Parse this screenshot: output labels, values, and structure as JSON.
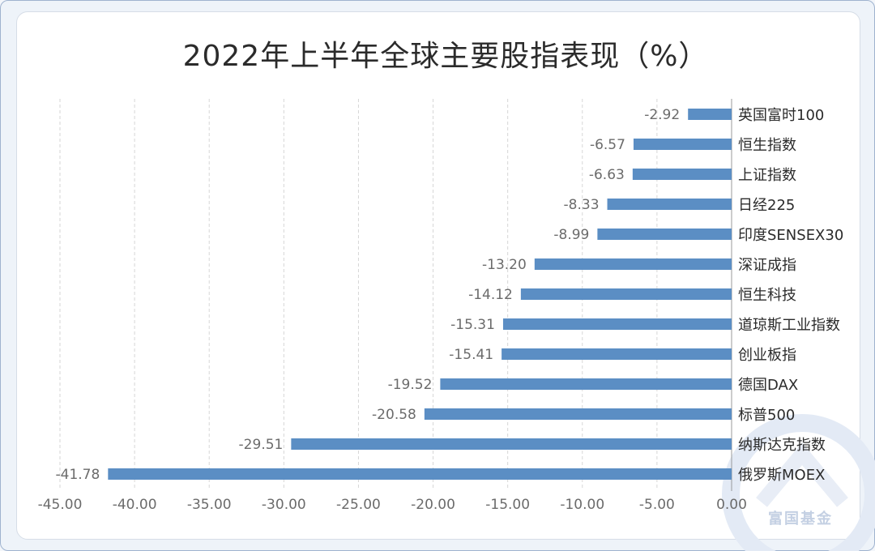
{
  "watermark": {
    "brand_text": "富国基金"
  },
  "chart_data": {
    "type": "bar",
    "orientation": "horizontal",
    "title": "2022年上半年全球主要股指表现（%）",
    "categories": [
      "英国富时100",
      "恒生指数",
      "上证指数",
      "日经225",
      "印度SENSEX30",
      "深证成指",
      "恒生科技",
      "道琼斯工业指数",
      "创业板指",
      "德国DAX",
      "标普500",
      "纳斯达克指数",
      "俄罗斯MOEX"
    ],
    "values": [
      -2.92,
      -6.57,
      -6.63,
      -8.33,
      -8.99,
      -13.2,
      -14.12,
      -15.31,
      -15.41,
      -19.52,
      -20.58,
      -29.51,
      -41.78
    ],
    "value_labels": [
      "-2.92",
      "-6.57",
      "-6.63",
      "-8.33",
      "-8.99",
      "-13.20",
      "-14.12",
      "-15.31",
      "-15.41",
      "-19.52",
      "-20.58",
      "-29.51",
      "-41.78"
    ],
    "x_ticks": [
      "-45.00",
      "-40.00",
      "-35.00",
      "-30.00",
      "-25.00",
      "-20.00",
      "-15.00",
      "-10.00",
      "-5.00",
      "0.00"
    ],
    "xlim": [
      -45,
      0
    ],
    "grid": "vertical-dashed",
    "colors": {
      "bar": "#5b8ec4",
      "grid": "#d6d6d6",
      "label": "#6b6b6b",
      "category": "#2b2b2b"
    }
  }
}
